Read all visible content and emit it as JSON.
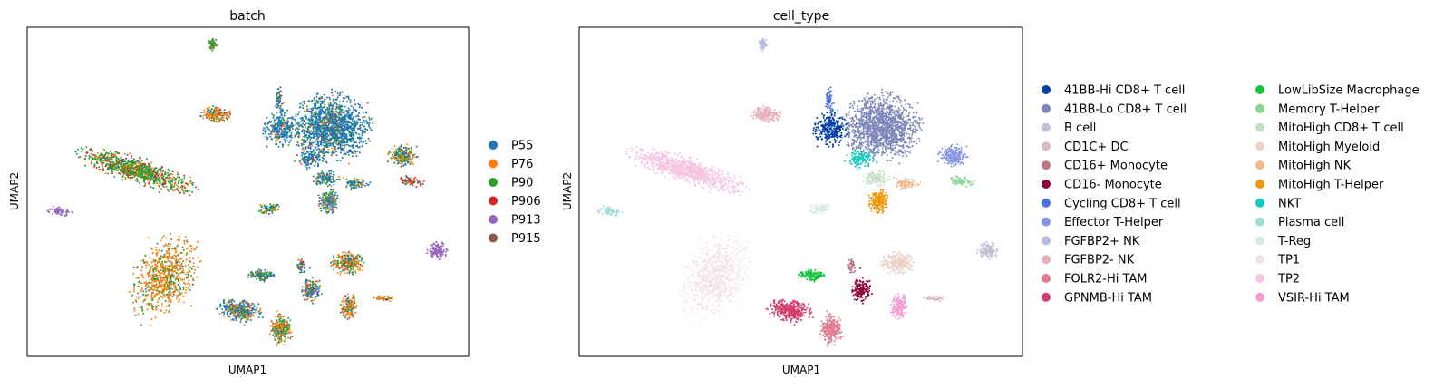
{
  "chart_data": [
    {
      "type": "scatter",
      "title": "batch",
      "xlabel": "UMAP1",
      "ylabel": "UMAP2",
      "xlim": [
        -10,
        10
      ],
      "ylim": [
        -10,
        10
      ],
      "grid": false,
      "legend_position": "right",
      "legend": [
        {
          "label": "P55",
          "color": "#1f77b4"
        },
        {
          "label": "P76",
          "color": "#ff7f0e"
        },
        {
          "label": "P90",
          "color": "#2ca02c"
        },
        {
          "label": "P906",
          "color": "#d62728"
        },
        {
          "label": "P913",
          "color": "#9467bd"
        },
        {
          "label": "P915",
          "color": "#8c564b"
        }
      ]
    },
    {
      "type": "scatter",
      "title": "cell_type",
      "xlabel": "UMAP1",
      "ylabel": "UMAP2",
      "xlim": [
        -10,
        10
      ],
      "ylim": [
        -10,
        10
      ],
      "grid": false,
      "legend_position": "right",
      "legend": [
        {
          "label": "41BB-Hi CD8+ T cell",
          "color": "#023fa5"
        },
        {
          "label": "41BB-Lo CD8+ T cell",
          "color": "#7d87b9"
        },
        {
          "label": "B cell",
          "color": "#bec1d4"
        },
        {
          "label": "CD1C+ DC",
          "color": "#d6bcc0"
        },
        {
          "label": "CD16+ Monocyte",
          "color": "#bb7784"
        },
        {
          "label": "CD16- Monocyte",
          "color": "#8e063b"
        },
        {
          "label": "Cycling CD8+ T cell",
          "color": "#4a6fe3"
        },
        {
          "label": "Effector T-Helper",
          "color": "#8595e1"
        },
        {
          "label": "FGFBP2+ NK",
          "color": "#b5bbe3"
        },
        {
          "label": "FGFBP2- NK",
          "color": "#e6afb9"
        },
        {
          "label": "FOLR2-Hi TAM",
          "color": "#e07b91"
        },
        {
          "label": "GPNMB-Hi TAM",
          "color": "#d33f6a"
        },
        {
          "label": "LowLibSize Macrophage",
          "color": "#11c638"
        },
        {
          "label": "Memory T-Helper",
          "color": "#8dd593"
        },
        {
          "label": "MitoHigh CD8+ T cell",
          "color": "#c6dec7"
        },
        {
          "label": "MitoHigh Myeloid",
          "color": "#ead3c6"
        },
        {
          "label": "MitoHigh NK",
          "color": "#f0b98d"
        },
        {
          "label": "MitoHigh T-Helper",
          "color": "#ef9708"
        },
        {
          "label": "NKT",
          "color": "#0fcfc0"
        },
        {
          "label": "Plasma cell",
          "color": "#9cded6"
        },
        {
          "label": "T-Reg",
          "color": "#d5eae7"
        },
        {
          "label": "TP1",
          "color": "#f3e1eb"
        },
        {
          "label": "TP2",
          "color": "#f6c4e1"
        },
        {
          "label": "VSIR-Hi TAM",
          "color": "#f79cd4"
        }
      ]
    }
  ]
}
